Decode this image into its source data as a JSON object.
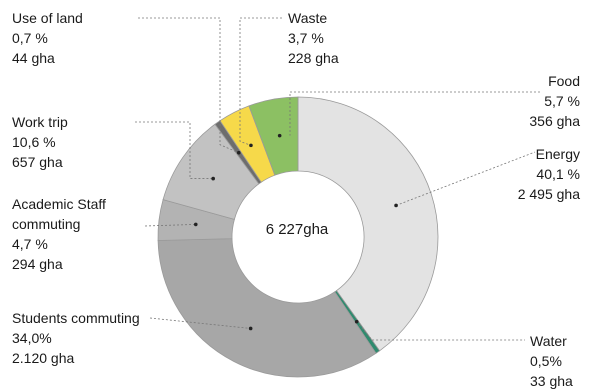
{
  "chart_data": {
    "type": "pie",
    "donut": true,
    "center_label": "6 227gha",
    "slices": [
      {
        "name": "Energy",
        "pct": 40.1,
        "pct_label": "40,1 %",
        "value_label": "2 495 gha",
        "color": "#e3e3e3"
      },
      {
        "name": "Water",
        "pct": 0.5,
        "pct_label": "0,5%",
        "value_label": "33 gha",
        "color": "#2e8b6e"
      },
      {
        "name": "Students commuting",
        "pct": 34.0,
        "pct_label": "34,0%",
        "value_label": "2.120 gha",
        "color": "#a7a7a7"
      },
      {
        "name": "Academic Staff commuting",
        "pct": 4.7,
        "pct_label": "4,7 %",
        "value_label": "294 gha",
        "color": "#b3b3b3"
      },
      {
        "name": "Work trip",
        "pct": 10.6,
        "pct_label": "10,6 %",
        "value_label": "657 gha",
        "color": "#c2c2c2"
      },
      {
        "name": "Use of land",
        "pct": 0.7,
        "pct_label": "0,7 %",
        "value_label": "44 gha",
        "color": "#6d6d6d"
      },
      {
        "name": "Waste",
        "pct": 3.7,
        "pct_label": "3,7 %",
        "value_label": "228 gha",
        "color": "#f6d94a"
      },
      {
        "name": "Food",
        "pct": 5.7,
        "pct_label": "5,7 %",
        "value_label": "356 gha",
        "color": "#8cc063"
      }
    ],
    "labels": {
      "use_of_land": {
        "name": "Use of land",
        "pct": "0,7 %",
        "val": "44 gha"
      },
      "waste": {
        "name": "Waste",
        "pct": "3,7 %",
        "val": "228 gha"
      },
      "food": {
        "name": "Food",
        "pct": "5,7 %",
        "val": "356 gha"
      },
      "energy": {
        "name": "Energy",
        "pct": "40,1 %",
        "val": "2 495 gha"
      },
      "work_trip": {
        "name": "Work trip",
        "pct": "10,6 %",
        "val": "657 gha"
      },
      "academic": {
        "name1": "Academic Staff",
        "name2": "commuting",
        "pct": "4,7 %",
        "val": "294 gha"
      },
      "students": {
        "name": "Students commuting",
        "pct": "34,0%",
        "val": "2.120 gha"
      },
      "water": {
        "name": "Water",
        "pct": "0,5%",
        "val": "33 gha"
      }
    }
  }
}
